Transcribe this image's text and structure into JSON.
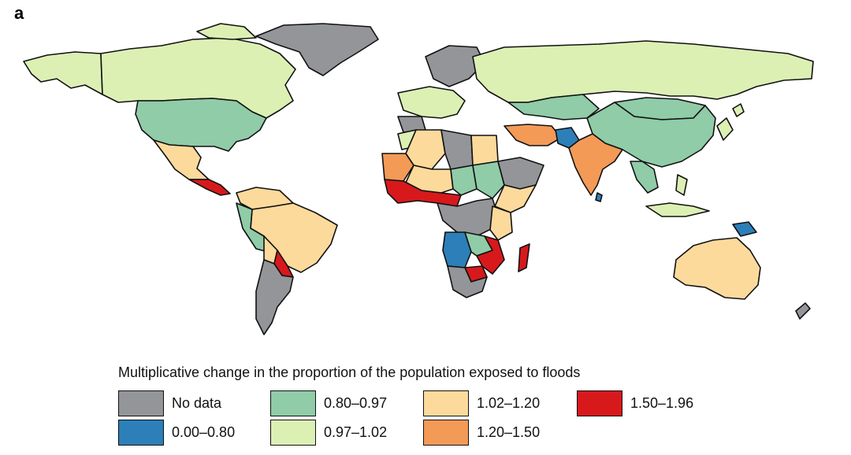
{
  "panel_label": "a",
  "legend": {
    "title": "Multiplicative change in the proportion of the population exposed to floods",
    "items": [
      {
        "label": "No data",
        "color": "#939598"
      },
      {
        "label": "0.00–0.80",
        "color": "#2c7fb8"
      },
      {
        "label": "0.80–0.97",
        "color": "#8fcca7"
      },
      {
        "label": "0.97–1.02",
        "color": "#dcf0b4"
      },
      {
        "label": "1.02–1.20",
        "color": "#fcda9c"
      },
      {
        "label": "1.20–1.50",
        "color": "#f39a57"
      },
      {
        "label": "1.50–1.96",
        "color": "#d7191c"
      }
    ]
  },
  "regions": [
    {
      "name": "Greenland",
      "class": "No data"
    },
    {
      "name": "Canada",
      "class": "0.97–1.02"
    },
    {
      "name": "Alaska",
      "class": "0.97–1.02"
    },
    {
      "name": "United States",
      "class": "0.80–0.97"
    },
    {
      "name": "Mexico",
      "class": "1.02–1.20"
    },
    {
      "name": "Central America",
      "class": "1.50–1.96"
    },
    {
      "name": "Brazil",
      "class": "1.02–1.20"
    },
    {
      "name": "Argentina",
      "class": "No data"
    },
    {
      "name": "Russia",
      "class": "0.97–1.02"
    },
    {
      "name": "China",
      "class": "0.80–0.97"
    },
    {
      "name": "Kazakhstan",
      "class": "0.80–0.97"
    },
    {
      "name": "India",
      "class": "1.20–1.50"
    },
    {
      "name": "Pakistan",
      "class": "0.00–0.80"
    },
    {
      "name": "Sri Lanka",
      "class": "0.00–0.80"
    },
    {
      "name": "Australia",
      "class": "1.02–1.20"
    },
    {
      "name": "Angola",
      "class": "0.00–0.80"
    },
    {
      "name": "Madagascar",
      "class": "1.50–1.96"
    },
    {
      "name": "West Africa",
      "class": "1.50–1.96"
    },
    {
      "name": "Sudan",
      "class": "0.80–0.97"
    },
    {
      "name": "Algeria",
      "class": "1.02–1.20"
    },
    {
      "name": "Libya",
      "class": "No data"
    },
    {
      "name": "Scandinavia",
      "class": "No data"
    },
    {
      "name": "Papua New Guinea",
      "class": "0.00–0.80"
    }
  ]
}
